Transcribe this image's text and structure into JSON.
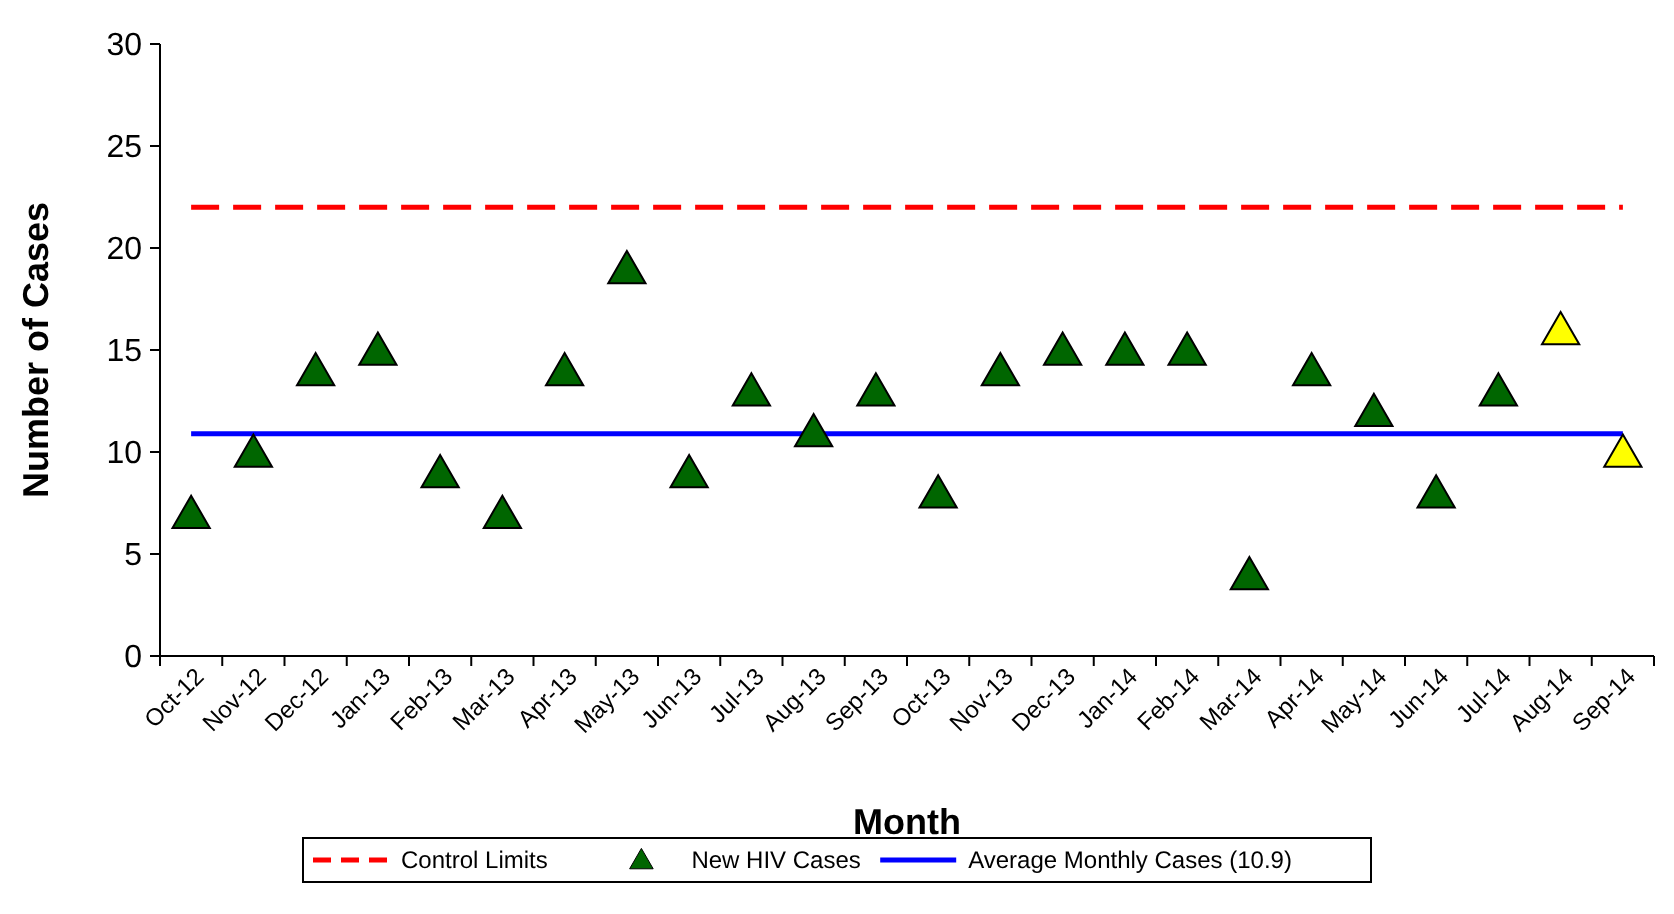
{
  "chart_data": {
    "type": "scatter",
    "xlabel": "Month",
    "ylabel": "Number of Cases",
    "categories": [
      "Oct-12",
      "Nov-12",
      "Dec-12",
      "Jan-13",
      "Feb-13",
      "Mar-13",
      "Apr-13",
      "May-13",
      "Jun-13",
      "Jul-13",
      "Aug-13",
      "Sep-13",
      "Oct-13",
      "Nov-13",
      "Dec-13",
      "Jan-14",
      "Feb-14",
      "Mar-14",
      "Apr-14",
      "May-14",
      "Jun-14",
      "Jul-14",
      "Aug-14",
      "Sep-14"
    ],
    "series": [
      {
        "name": "New HIV Cases",
        "color": "#006600",
        "values": [
          7,
          10,
          14,
          15,
          9,
          7,
          14,
          19,
          9,
          13,
          11,
          13,
          8,
          14,
          15,
          15,
          15,
          4,
          14,
          12,
          8,
          13,
          16,
          10
        ],
        "colors": [
          "#006600",
          "#006600",
          "#006600",
          "#006600",
          "#006600",
          "#006600",
          "#006600",
          "#006600",
          "#006600",
          "#006600",
          "#006600",
          "#006600",
          "#006600",
          "#006600",
          "#006600",
          "#006600",
          "#006600",
          "#006600",
          "#006600",
          "#006600",
          "#006600",
          "#006600",
          "#ffff00",
          "#ffff00"
        ]
      }
    ],
    "ylim": [
      0,
      30
    ],
    "yticks": [
      0,
      5,
      10,
      15,
      20,
      25,
      30
    ],
    "grid": false,
    "legend": "bottom",
    "marker": "triangle",
    "ref_lines": [
      {
        "axis": "y",
        "value": 22,
        "label": "Control Limits",
        "color": "#ff0000",
        "line_style": "dashed"
      },
      {
        "axis": "y",
        "value": 10.9,
        "label": "Average Monthly Cases (10.9)",
        "color": "#0000ff",
        "line_style": "solid"
      }
    ]
  }
}
